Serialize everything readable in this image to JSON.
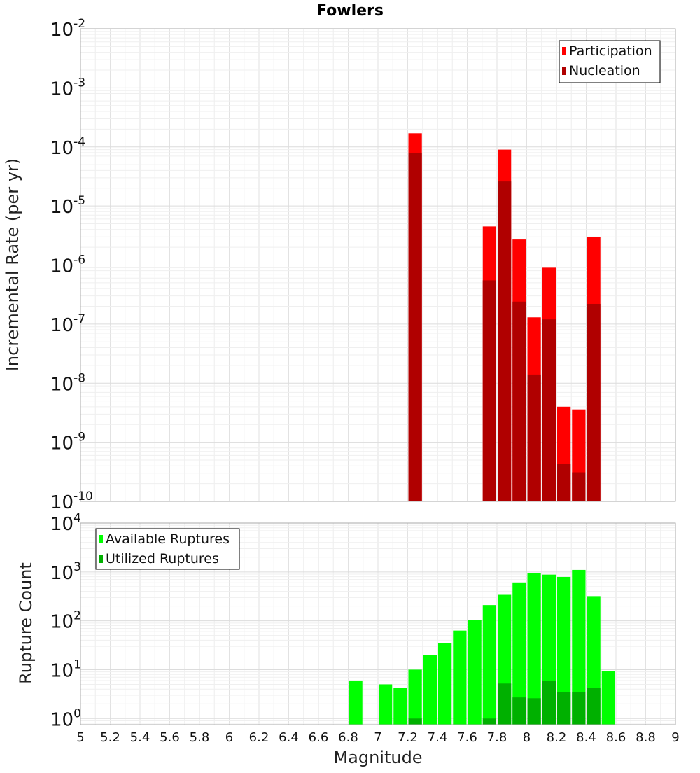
{
  "chart_data": [
    {
      "type": "bar",
      "title": "Fowlers",
      "xlabel": "",
      "ylabel": "Incremental Rate (per yr)",
      "y_scale": "log",
      "ylim": [
        1e-10,
        0.01
      ],
      "xlim": [
        5,
        9
      ],
      "grid": true,
      "legend_position": "top-right",
      "bar_width": 0.1,
      "y_tick_labels": [
        {
          "value": 1e-10,
          "base": "10",
          "exp": "-10"
        },
        {
          "value": 1e-09,
          "base": "10",
          "exp": "-9"
        },
        {
          "value": 1e-08,
          "base": "10",
          "exp": "-8"
        },
        {
          "value": 1e-07,
          "base": "10",
          "exp": "-7"
        },
        {
          "value": 1e-06,
          "base": "10",
          "exp": "-6"
        },
        {
          "value": 1e-05,
          "base": "10",
          "exp": "-5"
        },
        {
          "value": 0.0001,
          "base": "10",
          "exp": "-4"
        },
        {
          "value": 0.001,
          "base": "10",
          "exp": "-3"
        },
        {
          "value": 0.01,
          "base": "10",
          "exp": "-2"
        }
      ],
      "series": [
        {
          "name": "Participation",
          "color": "#ff0000",
          "points": [
            {
              "x": 7.25,
              "y": 0.00017
            },
            {
              "x": 7.75,
              "y": 4.5e-06
            },
            {
              "x": 7.85,
              "y": 9e-05
            },
            {
              "x": 7.95,
              "y": 2.7e-06
            },
            {
              "x": 8.05,
              "y": 1.3e-07
            },
            {
              "x": 8.15,
              "y": 9e-07
            },
            {
              "x": 8.25,
              "y": 4e-09
            },
            {
              "x": 8.35,
              "y": 3.6e-09
            },
            {
              "x": 8.45,
              "y": 3e-06
            }
          ]
        },
        {
          "name": "Nucleation",
          "color": "#b00000",
          "points": [
            {
              "x": 7.25,
              "y": 7.8e-05
            },
            {
              "x": 7.75,
              "y": 5.5e-07
            },
            {
              "x": 7.85,
              "y": 2.6e-05
            },
            {
              "x": 7.95,
              "y": 2.4e-07
            },
            {
              "x": 8.05,
              "y": 1.4e-08
            },
            {
              "x": 8.15,
              "y": 1.2e-07
            },
            {
              "x": 8.25,
              "y": 4.3e-10
            },
            {
              "x": 8.35,
              "y": 3.1e-10
            },
            {
              "x": 8.45,
              "y": 2.2e-07
            }
          ]
        }
      ]
    },
    {
      "type": "bar",
      "title": "",
      "xlabel": "Magnitude",
      "ylabel": "Rupture Count",
      "y_scale": "log",
      "ylim": [
        0.75,
        10000
      ],
      "xlim": [
        5,
        9
      ],
      "grid": true,
      "legend_position": "top-left",
      "bar_width": 0.1,
      "x_ticks": [
        5,
        5.2,
        5.4,
        5.6,
        5.8,
        6,
        6.2,
        6.4,
        6.6,
        6.8,
        7,
        7.2,
        7.4,
        7.6,
        7.8,
        8,
        8.2,
        8.4,
        8.6,
        8.8,
        9
      ],
      "x_tick_labels": [
        "5",
        "5.2",
        "5.4",
        "5.6",
        "5.8",
        "6",
        "6.2",
        "6.4",
        "6.6",
        "6.8",
        "7",
        "7.2",
        "7.4",
        "7.6",
        "7.8",
        "8",
        "8.2",
        "8.4",
        "8.6",
        "8.8",
        "9"
      ],
      "y_tick_labels": [
        {
          "value": 1,
          "base": "10",
          "exp": "0"
        },
        {
          "value": 10,
          "base": "10",
          "exp": "1"
        },
        {
          "value": 100,
          "base": "10",
          "exp": "2"
        },
        {
          "value": 1000,
          "base": "10",
          "exp": "3"
        },
        {
          "value": 10000,
          "base": "10",
          "exp": "4"
        }
      ],
      "series": [
        {
          "name": "Available Ruptures",
          "color": "#00ff00",
          "points": [
            {
              "x": 6.85,
              "y": 6
            },
            {
              "x": 7.05,
              "y": 5
            },
            {
              "x": 7.15,
              "y": 4.3
            },
            {
              "x": 7.25,
              "y": 10
            },
            {
              "x": 7.35,
              "y": 20
            },
            {
              "x": 7.45,
              "y": 35
            },
            {
              "x": 7.55,
              "y": 63
            },
            {
              "x": 7.65,
              "y": 105
            },
            {
              "x": 7.75,
              "y": 210
            },
            {
              "x": 7.85,
              "y": 340
            },
            {
              "x": 7.95,
              "y": 610
            },
            {
              "x": 8.05,
              "y": 960
            },
            {
              "x": 8.15,
              "y": 880
            },
            {
              "x": 8.25,
              "y": 790
            },
            {
              "x": 8.35,
              "y": 1100
            },
            {
              "x": 8.45,
              "y": 320
            },
            {
              "x": 8.55,
              "y": 9.5
            }
          ]
        },
        {
          "name": "Utilized Ruptures",
          "color": "#00b000",
          "points": [
            {
              "x": 7.25,
              "y": 1
            },
            {
              "x": 7.75,
              "y": 1
            },
            {
              "x": 7.85,
              "y": 5.2
            },
            {
              "x": 7.95,
              "y": 2.7
            },
            {
              "x": 8.05,
              "y": 2.6
            },
            {
              "x": 8.15,
              "y": 6
            },
            {
              "x": 8.25,
              "y": 3.5
            },
            {
              "x": 8.35,
              "y": 3.5
            },
            {
              "x": 8.45,
              "y": 4.3
            }
          ]
        }
      ]
    }
  ]
}
